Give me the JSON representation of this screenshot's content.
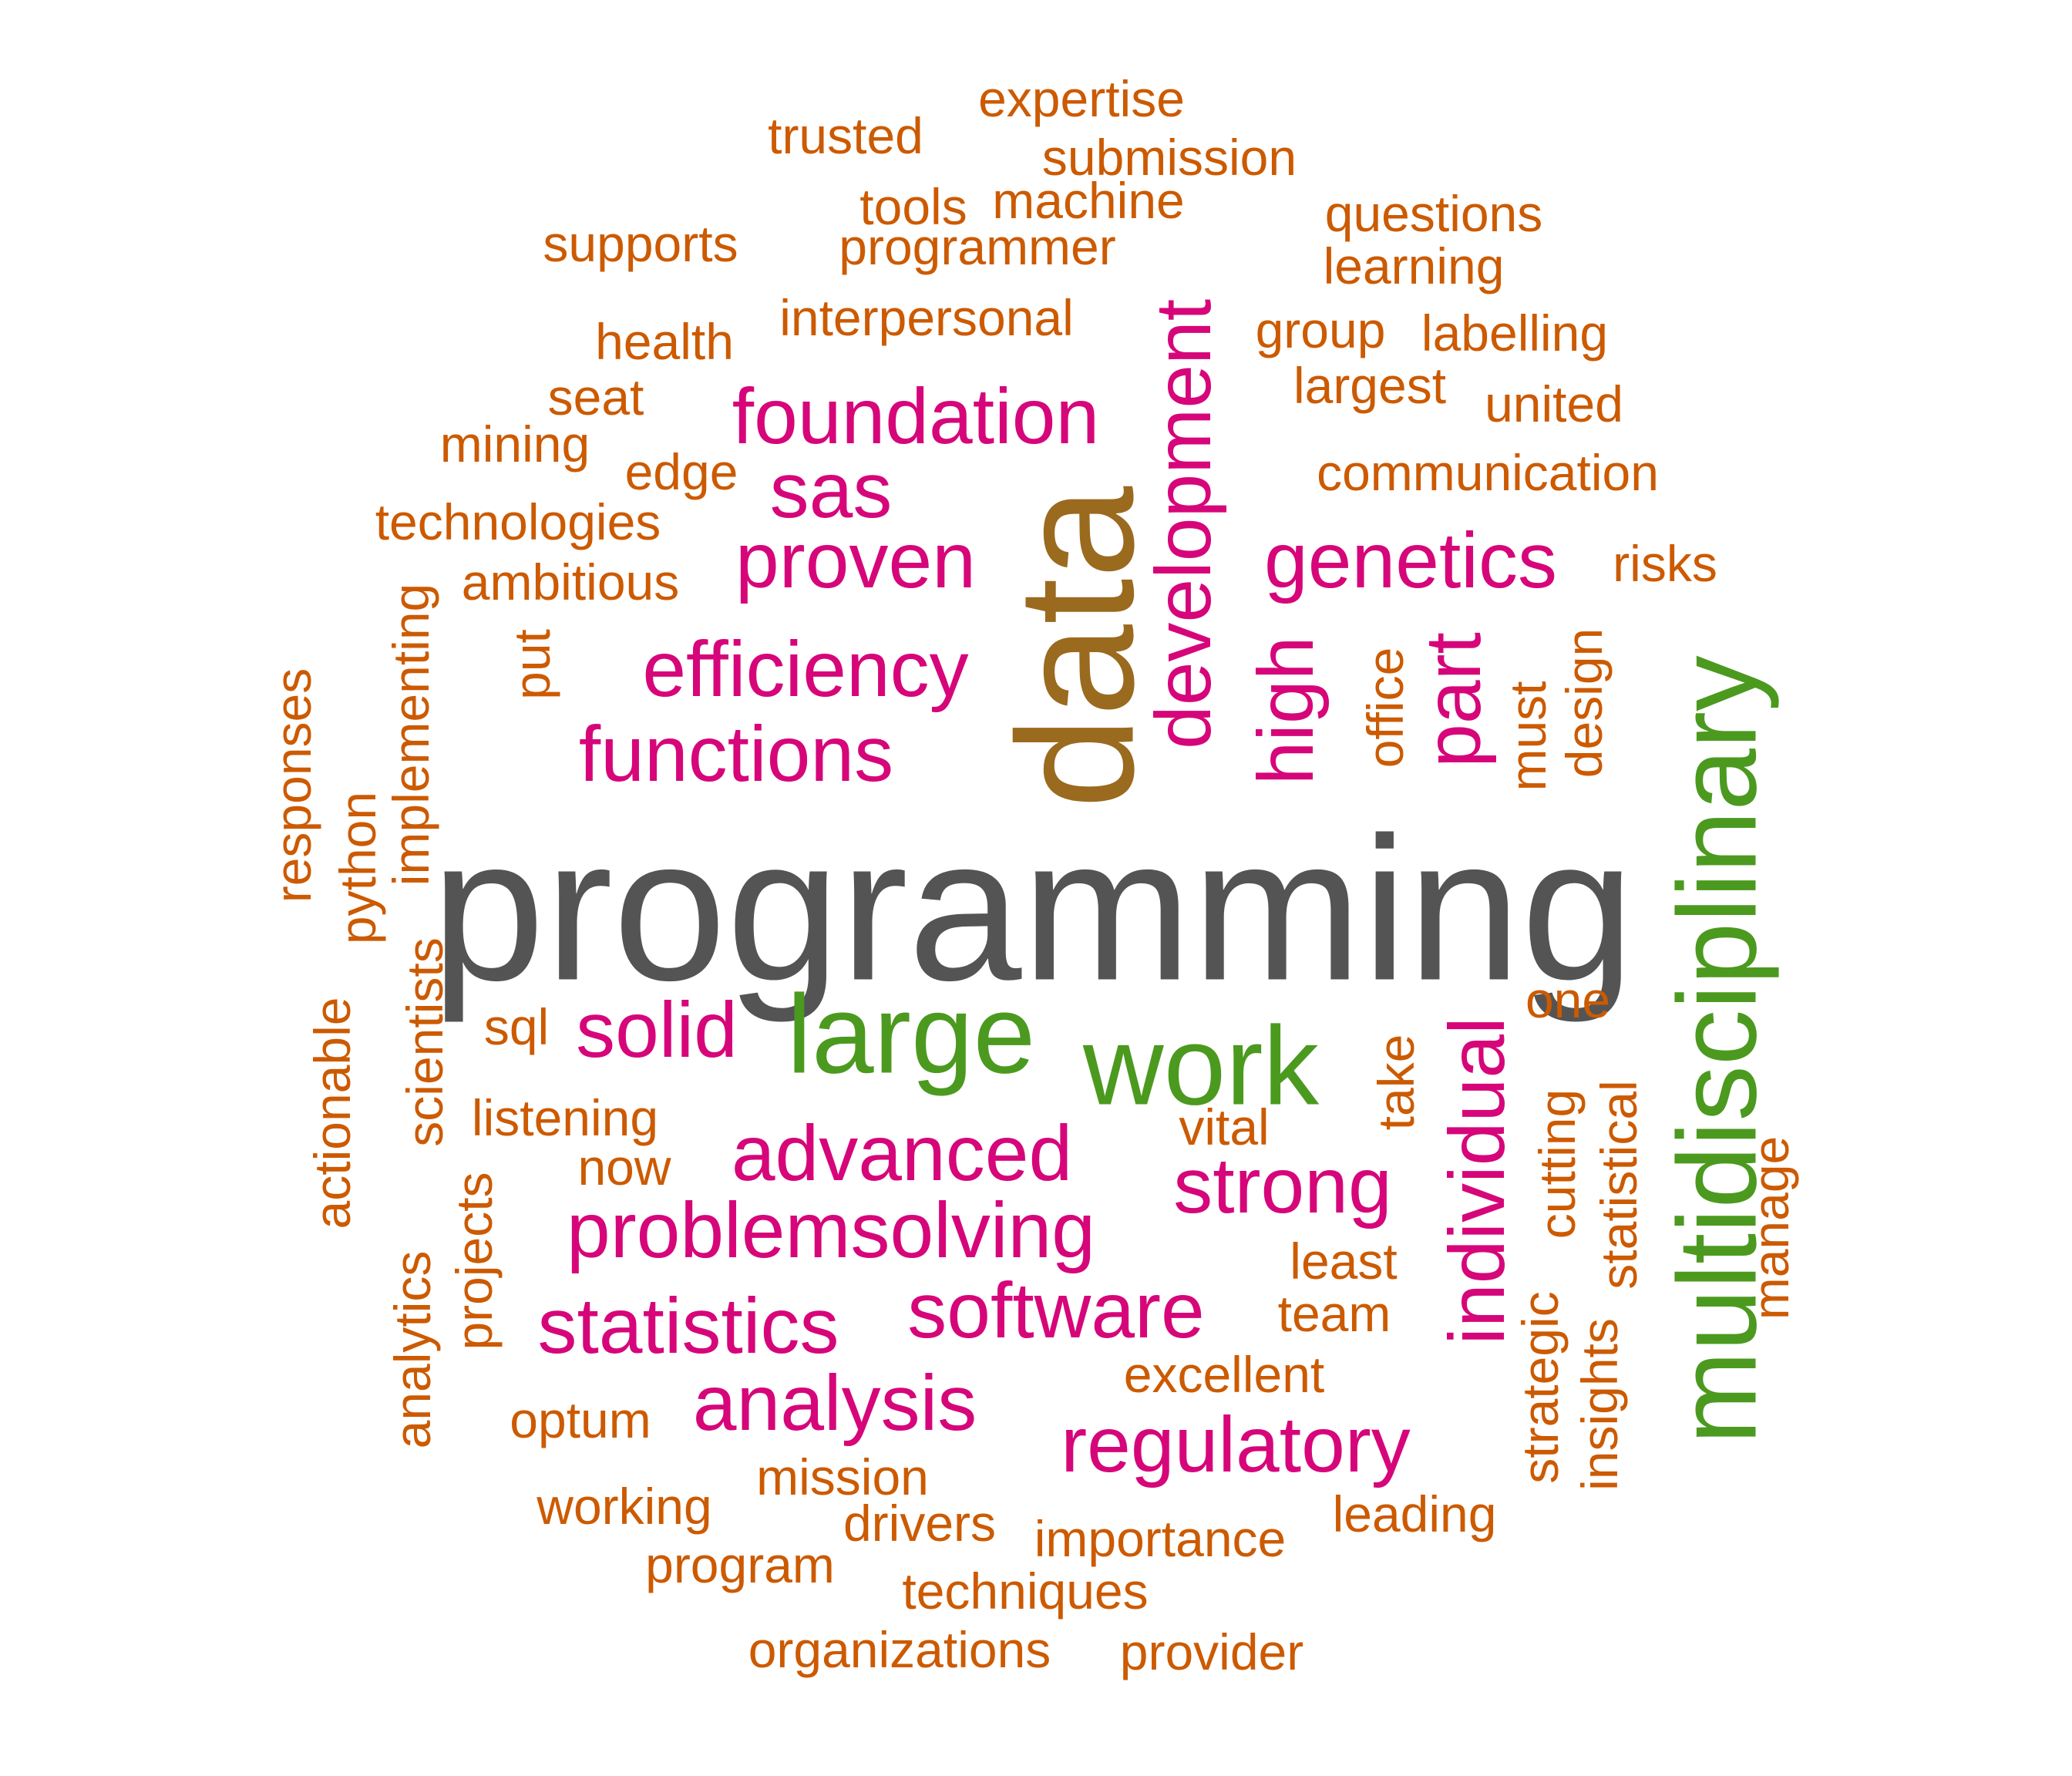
{
  "colors": {
    "grey": "#545454",
    "brown": "#9a6a1e",
    "green": "#4b9a1f",
    "magenta": "#d6067a",
    "orange": "#cc5a00"
  },
  "words": [
    {
      "text": "programming",
      "color": "grey"
    },
    {
      "text": "data",
      "color": "brown"
    },
    {
      "text": "multidisciplinary",
      "color": "green"
    },
    {
      "text": "large",
      "color": "green"
    },
    {
      "text": "work",
      "color": "green"
    },
    {
      "text": "development",
      "color": "magenta"
    },
    {
      "text": "foundation",
      "color": "magenta"
    },
    {
      "text": "sas",
      "color": "magenta"
    },
    {
      "text": "proven",
      "color": "magenta"
    },
    {
      "text": "genetics",
      "color": "magenta"
    },
    {
      "text": "efficiency",
      "color": "magenta"
    },
    {
      "text": "functions",
      "color": "magenta"
    },
    {
      "text": "high",
      "color": "magenta"
    },
    {
      "text": "part",
      "color": "magenta"
    },
    {
      "text": "solid",
      "color": "magenta"
    },
    {
      "text": "advanced",
      "color": "magenta"
    },
    {
      "text": "strong",
      "color": "magenta"
    },
    {
      "text": "problemsolving",
      "color": "magenta"
    },
    {
      "text": "statistics",
      "color": "magenta"
    },
    {
      "text": "software",
      "color": "magenta"
    },
    {
      "text": "analysis",
      "color": "magenta"
    },
    {
      "text": "regulatory",
      "color": "magenta"
    },
    {
      "text": "individual",
      "color": "magenta"
    },
    {
      "text": "expertise",
      "color": "orange"
    },
    {
      "text": "trusted",
      "color": "orange"
    },
    {
      "text": "submission",
      "color": "orange"
    },
    {
      "text": "tools",
      "color": "orange"
    },
    {
      "text": "machine",
      "color": "orange"
    },
    {
      "text": "questions",
      "color": "orange"
    },
    {
      "text": "supports",
      "color": "orange"
    },
    {
      "text": "programmer",
      "color": "orange"
    },
    {
      "text": "learning",
      "color": "orange"
    },
    {
      "text": "interpersonal",
      "color": "orange"
    },
    {
      "text": "health",
      "color": "orange"
    },
    {
      "text": "group",
      "color": "orange"
    },
    {
      "text": "labelling",
      "color": "orange"
    },
    {
      "text": "seat",
      "color": "orange"
    },
    {
      "text": "largest",
      "color": "orange"
    },
    {
      "text": "united",
      "color": "orange"
    },
    {
      "text": "mining",
      "color": "orange"
    },
    {
      "text": "edge",
      "color": "orange"
    },
    {
      "text": "communication",
      "color": "orange"
    },
    {
      "text": "technologies",
      "color": "orange"
    },
    {
      "text": "ambitious",
      "color": "orange"
    },
    {
      "text": "risks",
      "color": "orange"
    },
    {
      "text": "implementing",
      "color": "orange"
    },
    {
      "text": "responses",
      "color": "orange"
    },
    {
      "text": "put",
      "color": "orange"
    },
    {
      "text": "office",
      "color": "orange"
    },
    {
      "text": "must",
      "color": "orange"
    },
    {
      "text": "design",
      "color": "orange"
    },
    {
      "text": "python",
      "color": "orange"
    },
    {
      "text": "scientists",
      "color": "orange"
    },
    {
      "text": "actionable",
      "color": "orange"
    },
    {
      "text": "sql",
      "color": "orange"
    },
    {
      "text": "one",
      "color": "orange"
    },
    {
      "text": "listening",
      "color": "orange"
    },
    {
      "text": "take",
      "color": "orange"
    },
    {
      "text": "vital",
      "color": "orange"
    },
    {
      "text": "now",
      "color": "orange"
    },
    {
      "text": "cutting",
      "color": "orange"
    },
    {
      "text": "statistical",
      "color": "orange"
    },
    {
      "text": "manage",
      "color": "orange"
    },
    {
      "text": "projects",
      "color": "orange"
    },
    {
      "text": "least",
      "color": "orange"
    },
    {
      "text": "analytics",
      "color": "orange"
    },
    {
      "text": "team",
      "color": "orange"
    },
    {
      "text": "strategic",
      "color": "orange"
    },
    {
      "text": "insights",
      "color": "orange"
    },
    {
      "text": "excellent",
      "color": "orange"
    },
    {
      "text": "optum",
      "color": "orange"
    },
    {
      "text": "mission",
      "color": "orange"
    },
    {
      "text": "working",
      "color": "orange"
    },
    {
      "text": "leading",
      "color": "orange"
    },
    {
      "text": "drivers",
      "color": "orange"
    },
    {
      "text": "importance",
      "color": "orange"
    },
    {
      "text": "program",
      "color": "orange"
    },
    {
      "text": "techniques",
      "color": "orange"
    },
    {
      "text": "organizations",
      "color": "orange"
    },
    {
      "text": "provider",
      "color": "orange"
    }
  ]
}
